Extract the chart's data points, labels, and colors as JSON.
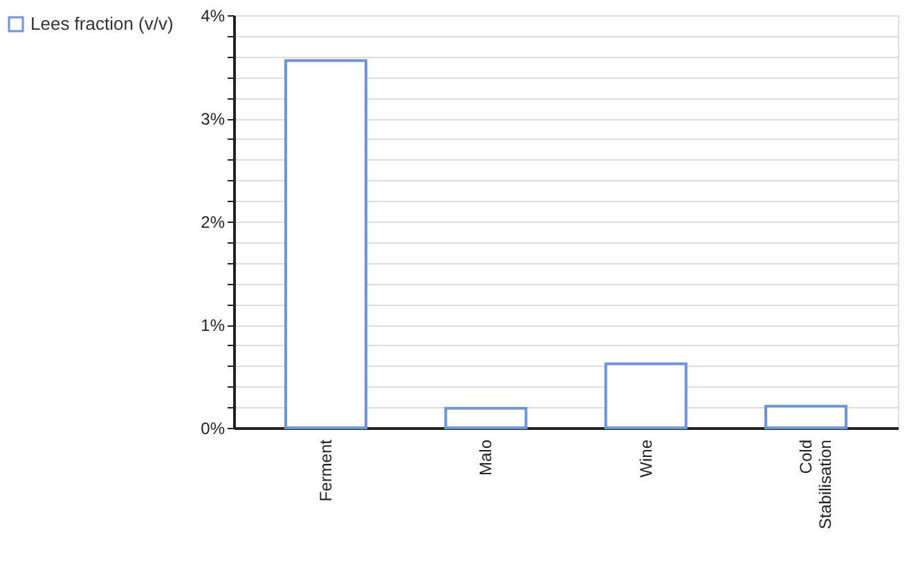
{
  "chart_data": {
    "type": "bar",
    "categories": [
      "Ferment",
      "Malo",
      "Wine",
      "Cold Stabilisation"
    ],
    "series": [
      {
        "name": "Lees fraction (v/v)",
        "color": "#6f95d8",
        "values": [
          3.56,
          0.19,
          0.62,
          0.21
        ]
      }
    ],
    "ylim": [
      0,
      4
    ],
    "yticks": [
      {
        "value": 0,
        "label": "0%"
      },
      {
        "value": 0.2,
        "label": null
      },
      {
        "value": 0.4,
        "label": null
      },
      {
        "value": 0.6,
        "label": null
      },
      {
        "value": 0.8,
        "label": null
      },
      {
        "value": 1,
        "label": "1%"
      },
      {
        "value": 1.2,
        "label": null
      },
      {
        "value": 1.4,
        "label": null
      },
      {
        "value": 1.6,
        "label": null
      },
      {
        "value": 1.8,
        "label": null
      },
      {
        "value": 2,
        "label": "2%"
      },
      {
        "value": 2.2,
        "label": null
      },
      {
        "value": 2.4,
        "label": null
      },
      {
        "value": 2.6,
        "label": null
      },
      {
        "value": 2.8,
        "label": null
      },
      {
        "value": 3,
        "label": "3%"
      },
      {
        "value": 3.2,
        "label": null
      },
      {
        "value": 3.4,
        "label": null
      },
      {
        "value": 3.6,
        "label": null
      },
      {
        "value": 3.8,
        "label": null
      },
      {
        "value": 4,
        "label": "4%"
      }
    ],
    "grid": "y",
    "legend": "left"
  }
}
